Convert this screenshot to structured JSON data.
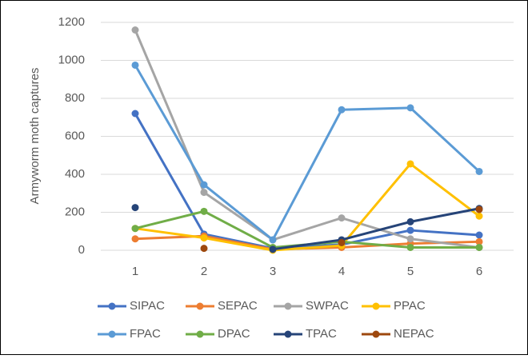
{
  "chart_data": {
    "type": "line",
    "y_label": "Armyworm moth captures",
    "categories": [
      "1",
      "2",
      "3",
      "4",
      "5",
      "6"
    ],
    "ylim": [
      0,
      1200
    ],
    "yticks": [
      0,
      200,
      400,
      600,
      800,
      1000,
      1200
    ],
    "grid": true,
    "series": [
      {
        "name": "SIPAC",
        "color": "#4472c4",
        "values": [
          720,
          85,
          10,
          30,
          105,
          80
        ]
      },
      {
        "name": "SEPAC",
        "color": "#ed7d31",
        "values": [
          60,
          75,
          5,
          15,
          35,
          45
        ]
      },
      {
        "name": "SWPAC",
        "color": "#a5a5a5",
        "values": [
          1160,
          305,
          55,
          170,
          60,
          15
        ]
      },
      {
        "name": "PPAC",
        "color": "#ffc000",
        "values": [
          115,
          65,
          0,
          25,
          455,
          180
        ]
      },
      {
        "name": "FPAC",
        "color": "#5b9bd5",
        "values": [
          975,
          345,
          55,
          740,
          750,
          415
        ]
      },
      {
        "name": "DPAC",
        "color": "#70ad47",
        "values": [
          115,
          205,
          15,
          45,
          15,
          15
        ]
      },
      {
        "name": "TPAC",
        "color": "#264478",
        "values": [
          225,
          null,
          5,
          55,
          150,
          220
        ]
      },
      {
        "name": "NEPAC",
        "color": "#9e480e",
        "values": [
          null,
          10,
          null,
          40,
          null,
          215
        ]
      }
    ]
  }
}
